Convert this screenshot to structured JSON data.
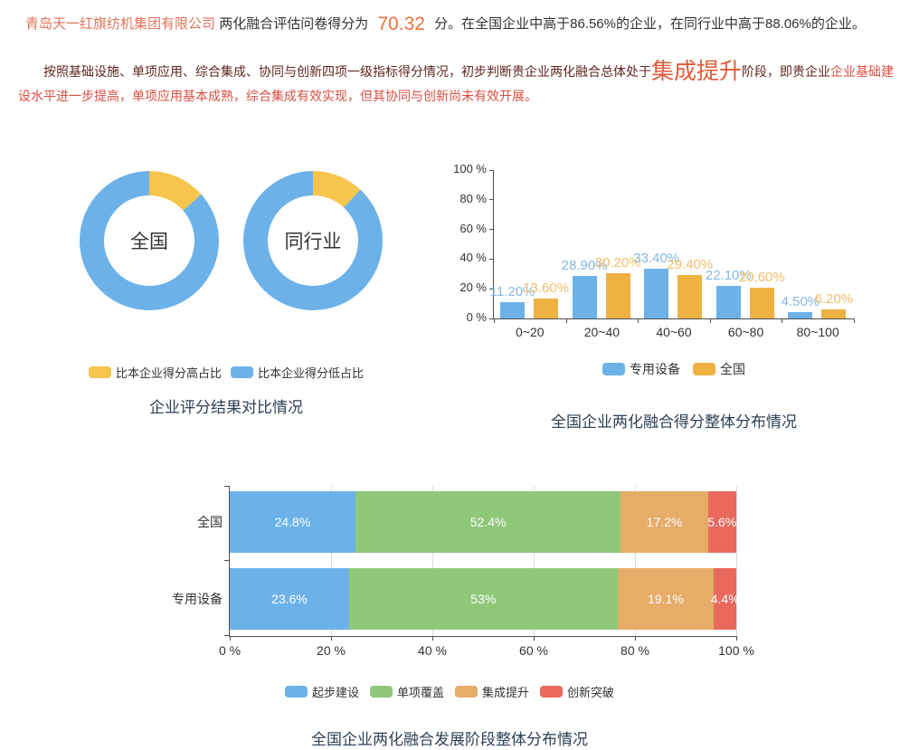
{
  "report": {
    "company": "青岛天一红旗纺机集团有限公司",
    "lead": "两化融合评估问卷得分为",
    "score": "70.32",
    "tail": "分。在全国企业中高于86.56%的企业，在同行业中高于88.06%的企业。",
    "para2_lead": "按照基础设施、单项应用、综合集成、协同与创新四项一级指标得分情况，初步判断贵企业两化融合总体处于",
    "stage": "集成提升",
    "para2_mid": "阶段，即贵企业",
    "para2_tail": "企业基础建设水平进一步提高，单项应用基本成熟，综合集成有效实现，但其协同与创新尚未有效开展。",
    "colors": {
      "company": "#E0745A",
      "score": "#E9713D",
      "dark_red": "#5E2620",
      "bright_red": "#D94F43",
      "stage": "#E25B3B",
      "title": "#2E4156"
    }
  },
  "chart_data": [
    {
      "id": "score-compare-donuts",
      "type": "pie",
      "title": "企业评分结果对比情况",
      "donuts": [
        {
          "label": "全国",
          "slices": [
            {
              "name": "比本企业得分高占比",
              "value": 13.44
            },
            {
              "name": "比本企业得分低占比",
              "value": 86.56
            }
          ]
        },
        {
          "label": "同行业",
          "slices": [
            {
              "name": "比本企业得分高占比",
              "value": 11.94
            },
            {
              "name": "比本企业得分低占比",
              "value": 88.06
            }
          ]
        }
      ],
      "legend": [
        {
          "label": "比本企业得分高占比",
          "color": "#F7C44C"
        },
        {
          "label": "比本企业得分低占比",
          "color": "#6CB2E9"
        }
      ],
      "legend_position": "bottom"
    },
    {
      "id": "score-distribution-bars",
      "type": "bar",
      "title": "全国企业两化融合得分整体分布情况",
      "categories": [
        "0~20",
        "20~40",
        "40~60",
        "60~80",
        "80~100"
      ],
      "series": [
        {
          "name": "专用设备",
          "color": "#6CB2E9",
          "label_color": "#87B7E3",
          "values": [
            11.2,
            28.9,
            33.4,
            22.1,
            4.5
          ],
          "labels": [
            "11.20%",
            "28.90%",
            "33.40%",
            "22.10%",
            "4.50%"
          ]
        },
        {
          "name": "全国",
          "color": "#F0B143",
          "label_color": "#F2BE67",
          "values": [
            13.6,
            30.2,
            29.4,
            20.6,
            6.2
          ],
          "labels": [
            "13.60%",
            "30.20%",
            "29.40%",
            "20.60%",
            "6.20%"
          ]
        }
      ],
      "yticks": [
        "0 %",
        "20 %",
        "40 %",
        "60 %",
        "80 %",
        "100 %"
      ],
      "ylim": [
        0,
        100
      ],
      "grid": false,
      "legend_position": "bottom"
    },
    {
      "id": "stage-distribution-stacked",
      "type": "bar",
      "orientation": "horizontal",
      "stacked": true,
      "title": "全国企业两化融合发展阶段整体分布情况",
      "categories": [
        "全国",
        "专用设备"
      ],
      "series": [
        {
          "name": "起步建设",
          "color": "#6CB2E9",
          "values": [
            24.8,
            23.6
          ],
          "labels": [
            "24.8%",
            "23.6%"
          ]
        },
        {
          "name": "单项覆盖",
          "color": "#90C87A",
          "values": [
            52.4,
            53
          ],
          "labels": [
            "52.4%",
            "53%"
          ]
        },
        {
          "name": "集成提升",
          "color": "#E6AC68",
          "values": [
            17.2,
            19.1
          ],
          "labels": [
            "17.2%",
            "19.1%"
          ]
        },
        {
          "name": "创新突破",
          "color": "#E9695C",
          "values": [
            5.6,
            4.4
          ],
          "labels": [
            "5.6%",
            "4.4%"
          ]
        }
      ],
      "xticks": [
        "0 %",
        "20 %",
        "40 %",
        "60 %",
        "80 %",
        "100 %"
      ],
      "xlim": [
        0,
        100
      ],
      "grid": true,
      "legend_position": "bottom"
    }
  ]
}
